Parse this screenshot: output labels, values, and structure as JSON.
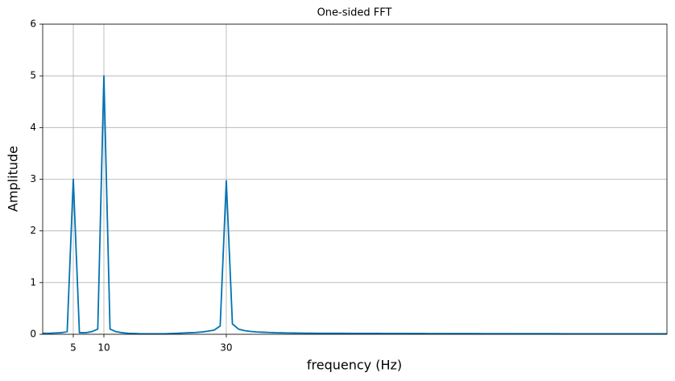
{
  "chart_data": {
    "type": "line",
    "title": "One-sided FFT",
    "x_label": "frequency (Hz)",
    "y_label": "Amplitude",
    "x": [
      0,
      1,
      2,
      3,
      4,
      5,
      6,
      7,
      8,
      9,
      10,
      11,
      12,
      13,
      14,
      15,
      16,
      17,
      18,
      19,
      20,
      21,
      22,
      23,
      24,
      25,
      26,
      27,
      28,
      29,
      30,
      31,
      32,
      33,
      34,
      35,
      36,
      37,
      38,
      39,
      40,
      41,
      42,
      43,
      44,
      45,
      46,
      47,
      48,
      49,
      50,
      51,
      52,
      53,
      54,
      55,
      56,
      57,
      58,
      59,
      60,
      61,
      62,
      63,
      64,
      65,
      66,
      67,
      68,
      69,
      70,
      71,
      72,
      73,
      74,
      75,
      76,
      77,
      78,
      79,
      80,
      81,
      82,
      83,
      84,
      85,
      86,
      87,
      88,
      89,
      90,
      91,
      92,
      93,
      94,
      95,
      96,
      97,
      98,
      99,
      100,
      101,
      102
    ],
    "series": [
      {
        "name": "amplitude",
        "color": "#0072b2",
        "values": [
          0.02,
          0.02,
          0.025,
          0.03,
          0.05,
          3.0,
          0.03,
          0.03,
          0.05,
          0.1,
          5.0,
          0.1,
          0.05,
          0.03,
          0.02,
          0.015,
          0.01,
          0.01,
          0.01,
          0.01,
          0.01,
          0.015,
          0.02,
          0.025,
          0.03,
          0.035,
          0.045,
          0.06,
          0.08,
          0.16,
          2.97,
          0.2,
          0.1,
          0.07,
          0.055,
          0.045,
          0.04,
          0.035,
          0.03,
          0.028,
          0.025,
          0.024,
          0.023,
          0.022,
          0.021,
          0.02,
          0.02,
          0.02,
          0.019,
          0.019,
          0.018,
          0.018,
          0.018,
          0.017,
          0.017,
          0.017,
          0.016,
          0.016,
          0.016,
          0.015,
          0.015,
          0.015,
          0.015,
          0.014,
          0.014,
          0.014,
          0.014,
          0.013,
          0.013,
          0.013,
          0.013,
          0.013,
          0.012,
          0.012,
          0.012,
          0.012,
          0.012,
          0.012,
          0.011,
          0.011,
          0.011,
          0.011,
          0.011,
          0.011,
          0.011,
          0.01,
          0.01,
          0.01,
          0.01,
          0.01,
          0.01,
          0.01,
          0.01,
          0.01,
          0.01,
          0.01,
          0.01,
          0.01,
          0.01,
          0.01,
          0.01,
          0.01,
          0.01
        ]
      }
    ],
    "xlim": [
      0,
      102
    ],
    "ylim": [
      0,
      6
    ],
    "xticks": [
      5,
      10,
      30
    ],
    "yticks": [
      0,
      1,
      2,
      3,
      4,
      5,
      6
    ],
    "grid": true
  }
}
